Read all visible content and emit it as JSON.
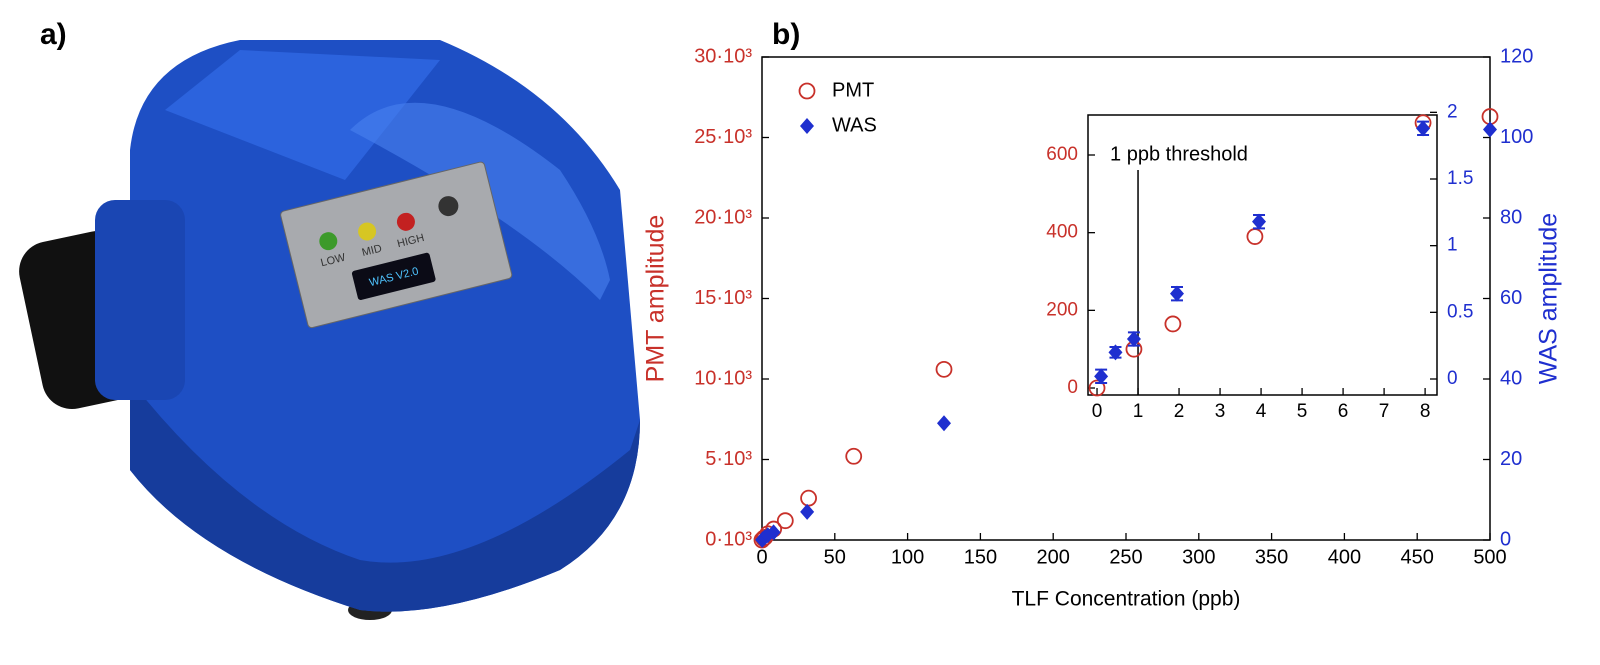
{
  "panels": {
    "a": "a)",
    "b": "b)"
  },
  "device": {
    "leds": [
      "LOW",
      "MID",
      "HIGH"
    ],
    "screen": "WAS V2.0"
  },
  "chart_data": [
    {
      "type": "scatter",
      "xlabel": "TLF Concentration (ppb)",
      "ylabel": "PMT amplitude",
      "y2label": "WAS amplitude",
      "xlim": [
        0,
        500
      ],
      "xticks": [
        0,
        50,
        100,
        150,
        200,
        250,
        300,
        350,
        400,
        450,
        500
      ],
      "ylim": [
        0,
        30000
      ],
      "yticks": [
        {
          "value": 0,
          "label": "0·10³"
        },
        {
          "value": 5000,
          "label": "5·10³"
        },
        {
          "value": 10000,
          "label": "10·10³"
        },
        {
          "value": 15000,
          "label": "15·10³"
        },
        {
          "value": 20000,
          "label": "20·10³"
        },
        {
          "value": 25000,
          "label": "25·10³"
        },
        {
          "value": 30000,
          "label": "30·10³"
        }
      ],
      "y2lim": [
        0,
        120
      ],
      "y2ticks": [
        0,
        20,
        40,
        60,
        80,
        100,
        120
      ],
      "y_color": "#c8312a",
      "y2_color": "#1f2fcf",
      "legend": "upper left",
      "series": [
        {
          "name": "PMT",
          "color": "#c8312a",
          "marker": "circle",
          "x": [
            0,
            1,
            2,
            4,
            8,
            16,
            32,
            63,
            125,
            500
          ],
          "values": [
            0,
            100,
            165,
            390,
            680,
            1200,
            2600,
            5200,
            10600,
            26300
          ]
        },
        {
          "name": "WAS",
          "color": "#1f2fcf",
          "marker": "diamond",
          "axis": "y2",
          "x": [
            0.1,
            0.45,
            0.9,
            1.95,
            3.95,
            7.95,
            31,
            125,
            500
          ],
          "values": [
            0.02,
            0.2,
            0.3,
            0.64,
            1.18,
            1.88,
            7,
            29,
            102
          ]
        }
      ]
    },
    {
      "type": "scatter",
      "xlim": [
        -0.22,
        8.29
      ],
      "xticks": [
        0,
        1,
        2,
        3,
        4,
        5,
        6,
        7,
        8
      ],
      "ylim": [
        -18,
        703
      ],
      "yticks": [
        0,
        200,
        400,
        600
      ],
      "y2lim": [
        -0.12,
        1.98
      ],
      "y2ticks": [
        0,
        0.5,
        1,
        1.5,
        2
      ],
      "y_color": "#c8312a",
      "y2_color": "#1f2fcf",
      "threshold": {
        "label": "1 ppb threshold",
        "x": 1
      },
      "series": [
        {
          "color": "#c8312a",
          "marker": "circle",
          "x": [
            0,
            0.9,
            1.85,
            3.85,
            7.95
          ],
          "values": [
            0,
            100,
            165,
            390,
            683
          ]
        },
        {
          "color": "#1f2fcf",
          "marker": "diamond",
          "axis": "y2",
          "x": [
            0.1,
            0.45,
            0.9,
            1.95,
            3.95,
            7.95
          ],
          "values": [
            0.02,
            0.2,
            0.3,
            0.64,
            1.18,
            1.88
          ],
          "errors": [
            0.05,
            0.04,
            0.05,
            0.05,
            0.05,
            0.05
          ]
        }
      ]
    }
  ]
}
